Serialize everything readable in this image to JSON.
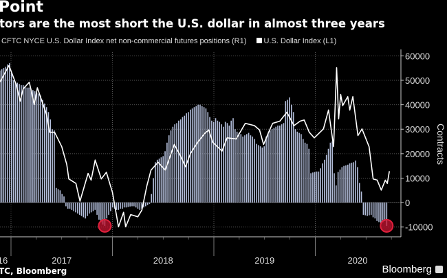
{
  "header": {
    "title": "Point",
    "subtitle": "tors are the most short the U.S. dollar in almost three years"
  },
  "legend": {
    "series1": "CFTC NYCE U.S. Dollar Index net non-commercial futures positions (R1)",
    "series2": "U.S. Dollar Index (L1)"
  },
  "footer": {
    "source": "TC, Bloomberg",
    "brand": "Bloomberg"
  },
  "colors": {
    "bars": "#b4bfdc",
    "line": "#ffffff",
    "highlight": "#e0203c",
    "background": "#000000"
  },
  "chart_data": {
    "type": "bar+line",
    "x_tick_labels": [
      "16",
      "2017",
      "2018",
      "2019",
      "2020"
    ],
    "right_axis": {
      "label": "Contracts",
      "ticks": [
        60000,
        50000,
        40000,
        30000,
        20000,
        10000,
        0,
        -10000
      ],
      "tick_labels": [
        "60000",
        "50000",
        "40000",
        "30000",
        "20000",
        "10000",
        "0",
        "-10000"
      ],
      "ylim": [
        -14000,
        61500
      ]
    },
    "left_axis": {
      "ylim": [
        87.7,
        104.3
      ],
      "shown": false
    },
    "grid": true,
    "bars": {
      "series": "CFTC NYCE U.S. Dollar Index net non-commercial futures positions (R1)",
      "frequency": "weekly",
      "start": 2016.89,
      "values": [
        54000,
        54500,
        55000,
        55500,
        56500,
        57000,
        53000,
        50000,
        49500,
        49000,
        48500,
        48000,
        48000,
        47500,
        47000,
        47000,
        46500,
        46000,
        45500,
        45000,
        44500,
        43700,
        42000,
        40500,
        39000,
        37000,
        34000,
        30000,
        29500,
        6000,
        5500,
        5000,
        3500,
        2500,
        -1500,
        -2500,
        -2500,
        -3000,
        -3500,
        -4000,
        -4500,
        -5000,
        -5500,
        -6000,
        -6500,
        -5500,
        -4500,
        -4000,
        -3500,
        -3000,
        -5000,
        -7000,
        -8000,
        -9000,
        -9500,
        -6500,
        -5000,
        -3500,
        -2000,
        -2500,
        -3000,
        -3000,
        -2500,
        -2500,
        -2000,
        -2000,
        -1800,
        -1600,
        -1500,
        -1500,
        -2000,
        -2500,
        -3000,
        -2500,
        -2000,
        -1500,
        -1000,
        -500,
        3500,
        10000,
        16500,
        17500,
        18000,
        18500,
        19000,
        21000,
        24500,
        27500,
        29500,
        31000,
        32000,
        32500,
        33500,
        34000,
        35000,
        35500,
        36500,
        37000,
        38000,
        38500,
        39000,
        39500,
        40000,
        40000,
        39500,
        39000,
        38500,
        37000,
        35000,
        33500,
        33000,
        34500,
        33500,
        33000,
        32000,
        31000,
        33000,
        32500,
        31500,
        33500,
        34500,
        30000,
        29000,
        28500,
        28000,
        27000,
        27500,
        28000,
        28500,
        27500,
        27000,
        26000,
        24000,
        23500,
        23000,
        22500,
        23000,
        27000,
        28500,
        29500,
        30000,
        30500,
        31000,
        31500,
        31500,
        32000,
        32500,
        41500,
        42000,
        43000,
        40000,
        37000,
        30000,
        29000,
        28500,
        28000,
        26000,
        24500,
        24000,
        22000,
        12000,
        12300,
        12500,
        12700,
        12700,
        14000,
        16000,
        17500,
        19500,
        22000,
        24500,
        25000,
        12000,
        7000,
        12500,
        13500,
        14500,
        15000,
        15200,
        15500,
        16000,
        16300,
        16500,
        17200,
        14500,
        8000,
        4500,
        -5000,
        -5200,
        -5500,
        -5200,
        -5000,
        -6000,
        -6500,
        -7500,
        -8000,
        -8500,
        -8000,
        -7500,
        -9500
      ],
      "highlighted": [
        54,
        199
      ]
    },
    "line": {
      "series": "U.S. Dollar Index (L1)",
      "points": [
        [
          2016.89,
          101.6
        ],
        [
          2016.98,
          103.1
        ],
        [
          2017.05,
          101.4
        ],
        [
          2017.09,
          99.9
        ],
        [
          2017.12,
          101.0
        ],
        [
          2017.18,
          101.6
        ],
        [
          2017.23,
          99.6
        ],
        [
          2017.26,
          101.1
        ],
        [
          2017.35,
          98.7
        ],
        [
          2017.38,
          97.1
        ],
        [
          2017.43,
          97.1
        ],
        [
          2017.5,
          95.8
        ],
        [
          2017.55,
          94.2
        ],
        [
          2017.57,
          92.9
        ],
        [
          2017.64,
          92.5
        ],
        [
          2017.68,
          90.9
        ],
        [
          2017.76,
          93.4
        ],
        [
          2017.79,
          92.8
        ],
        [
          2017.83,
          94.6
        ],
        [
          2017.89,
          92.9
        ],
        [
          2017.94,
          93.5
        ],
        [
          2018.0,
          91.7
        ],
        [
          2018.06,
          88.6
        ],
        [
          2018.11,
          89.9
        ],
        [
          2018.13,
          88.6
        ],
        [
          2018.18,
          89.7
        ],
        [
          2018.25,
          89.5
        ],
        [
          2018.29,
          90.1
        ],
        [
          2018.34,
          92.3
        ],
        [
          2018.38,
          93.7
        ],
        [
          2018.45,
          94.4
        ],
        [
          2018.52,
          93.7
        ],
        [
          2018.61,
          96.0
        ],
        [
          2018.67,
          95.0
        ],
        [
          2018.72,
          94.0
        ],
        [
          2018.77,
          95.2
        ],
        [
          2018.84,
          96.2
        ],
        [
          2018.91,
          97.0
        ],
        [
          2018.95,
          97.3
        ],
        [
          2018.99,
          96.2
        ],
        [
          2019.08,
          95.4
        ],
        [
          2019.13,
          96.6
        ],
        [
          2019.22,
          96.5
        ],
        [
          2019.31,
          97.9
        ],
        [
          2019.4,
          97.7
        ],
        [
          2019.45,
          97.3
        ],
        [
          2019.49,
          96.0
        ],
        [
          2019.54,
          97.1
        ],
        [
          2019.58,
          97.9
        ],
        [
          2019.65,
          98.1
        ],
        [
          2019.72,
          98.9
        ],
        [
          2019.79,
          97.7
        ],
        [
          2019.85,
          98.1
        ],
        [
          2019.89,
          98.2
        ],
        [
          2019.94,
          97.1
        ],
        [
          2019.99,
          96.6
        ],
        [
          2020.08,
          97.4
        ],
        [
          2020.13,
          99.1
        ],
        [
          2020.18,
          95.8
        ],
        [
          2020.21,
          102.9
        ],
        [
          2020.23,
          98.3
        ],
        [
          2020.25,
          100.5
        ],
        [
          2020.27,
          99.5
        ],
        [
          2020.32,
          100.3
        ],
        [
          2020.34,
          99.1
        ],
        [
          2020.37,
          100.3
        ],
        [
          2020.42,
          96.8
        ],
        [
          2020.46,
          97.4
        ],
        [
          2020.53,
          95.8
        ],
        [
          2020.57,
          92.9
        ],
        [
          2020.61,
          92.8
        ],
        [
          2020.65,
          91.9
        ],
        [
          2020.69,
          92.8
        ],
        [
          2020.71,
          92.5
        ],
        [
          2020.73,
          93.6
        ]
      ]
    }
  }
}
